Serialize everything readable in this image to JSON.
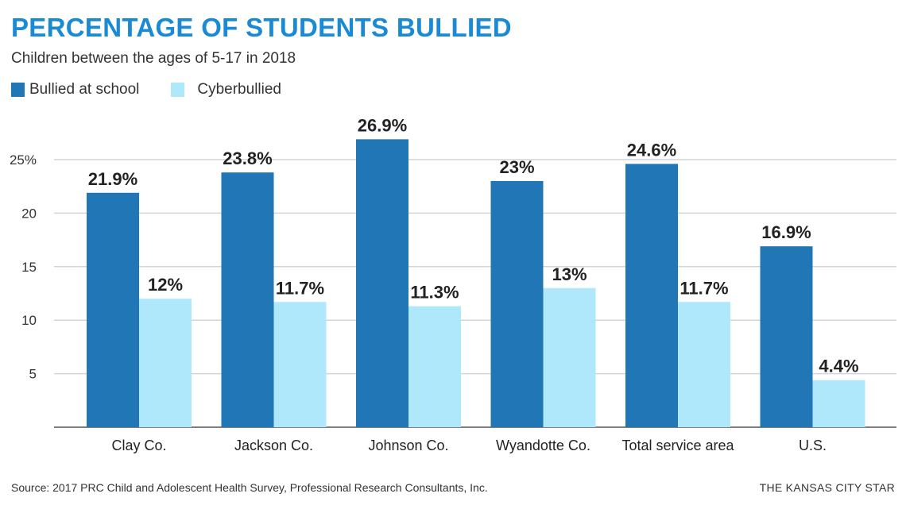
{
  "chart_data": {
    "type": "bar",
    "title": "PERCENTAGE OF STUDENTS BULLIED",
    "subtitle": "Children between the ages of 5-17 in 2018",
    "xlabel": "",
    "ylabel": "",
    "ylim": [
      0,
      27
    ],
    "yticks": [
      5,
      10,
      15,
      20,
      25
    ],
    "ytick_labels": [
      "5",
      "10",
      "15",
      "20",
      "25%"
    ],
    "grid": true,
    "legend_position": "top-left",
    "categories": [
      "Clay Co.",
      "Jackson Co.",
      "Johnson Co.",
      "Wyandotte Co.",
      "Total service area",
      "U.S."
    ],
    "series": [
      {
        "name": "Bullied at school",
        "color": "#2176b5",
        "values": [
          21.9,
          23.8,
          26.9,
          23,
          24.6,
          16.9
        ],
        "labels": [
          "21.9%",
          "23.8%",
          "26.9%",
          "23%",
          "24.6%",
          "16.9%"
        ]
      },
      {
        "name": "Cyberbullied",
        "color": "#aee8fa",
        "values": [
          12,
          11.7,
          11.3,
          13,
          11.7,
          4.4
        ],
        "labels": [
          "12%",
          "11.7%",
          "11.3%",
          "13%",
          "11.7%",
          "4.4%"
        ]
      }
    ],
    "source": "Source: 2017 PRC Child and Adolescent Health Survey, Professional Research Consultants, Inc.",
    "credit": "THE KANSAS CITY STAR"
  }
}
